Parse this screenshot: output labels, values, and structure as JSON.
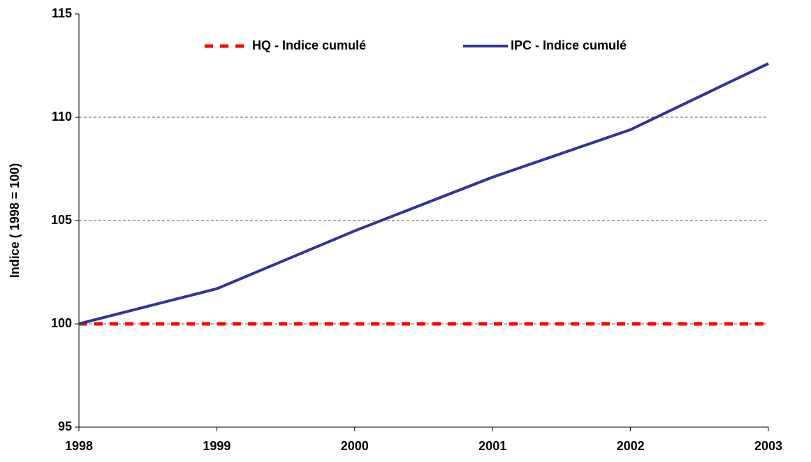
{
  "chart_data": {
    "type": "line",
    "y_label": "Indice ( 1998 = 100)",
    "x": [
      1998,
      1999,
      2000,
      2001,
      2002,
      2003
    ],
    "xlim": [
      1998,
      2003
    ],
    "xticks": [
      1998,
      1999,
      2000,
      2001,
      2002,
      2003
    ],
    "ylim": [
      95,
      115
    ],
    "yticks": [
      95,
      100,
      105,
      110,
      115
    ],
    "grid": true,
    "legend": "top",
    "series": [
      {
        "name": "HQ - Indice cumulé",
        "color": "#ff0000",
        "dash": true,
        "values": [
          100,
          100,
          100,
          100,
          100,
          100
        ]
      },
      {
        "name": "IPC - Indice cumulé",
        "color": "#333399",
        "dash": false,
        "values": [
          100,
          101.7,
          104.5,
          107.1,
          109.4,
          112.6
        ]
      }
    ]
  }
}
